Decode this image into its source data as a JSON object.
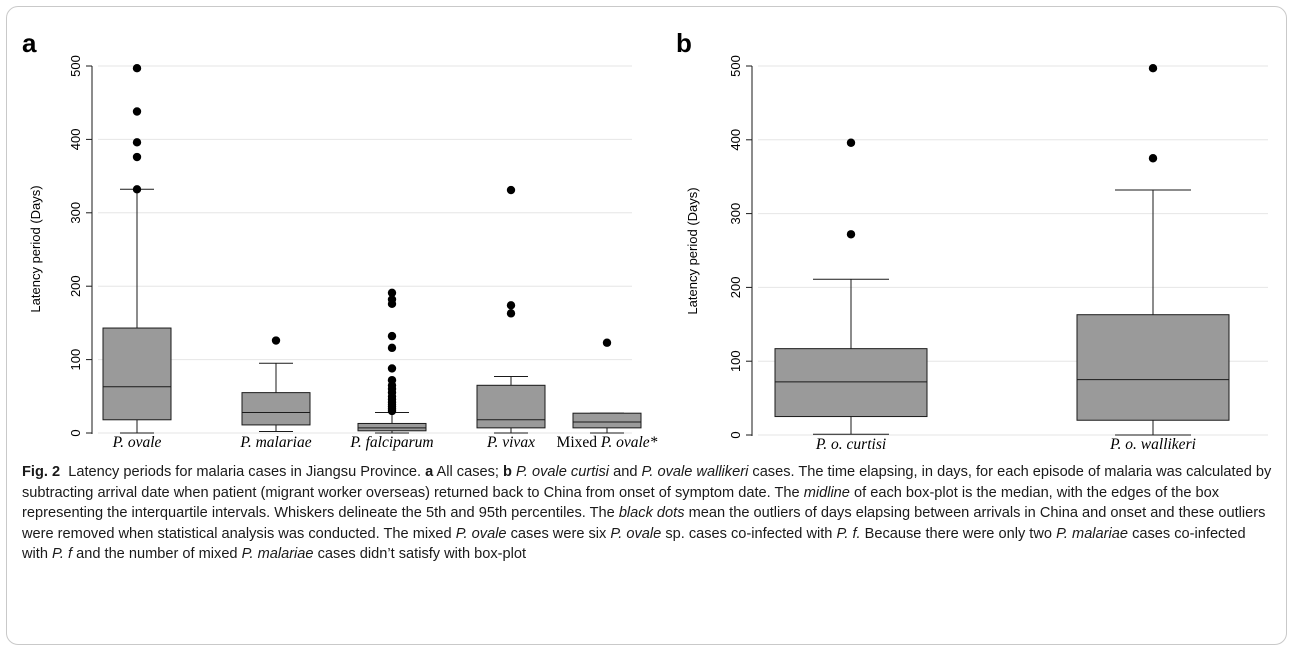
{
  "figure": {
    "colors": {
      "box_fill": "#9a9a9a",
      "stroke": "#1a1a1a",
      "grid": "#e6e6e6",
      "outlier": "#000000"
    }
  },
  "chart_data": [
    {
      "type": "box",
      "panel_label": "a",
      "ylabel": "Latency period (Days)",
      "ylim": [
        0,
        500
      ],
      "yticks": [
        0,
        100,
        200,
        300,
        400,
        500
      ],
      "grid": true,
      "categories": [
        "P. ovale",
        "P. malariae",
        "P. falciparum",
        "P. vivax",
        "Mixed P. ovale*"
      ],
      "boxes": [
        {
          "category": "P. ovale",
          "whisker_low": 0,
          "q1": 18,
          "median": 63,
          "q3": 143,
          "whisker_high": 332,
          "outliers": [
            332,
            376,
            396,
            438,
            497
          ]
        },
        {
          "category": "P. malariae",
          "whisker_low": 2,
          "q1": 11,
          "median": 28,
          "q3": 55,
          "whisker_high": 95,
          "outliers": [
            126
          ]
        },
        {
          "category": "P. falciparum",
          "whisker_low": 0,
          "q1": 3,
          "median": 7,
          "q3": 13,
          "whisker_high": 28,
          "outliers": [
            30,
            33,
            36,
            39,
            42,
            46,
            50,
            55,
            60,
            65,
            72,
            88,
            116,
            132,
            176,
            182,
            191
          ]
        },
        {
          "category": "P. vivax",
          "whisker_low": 0,
          "q1": 7,
          "median": 18,
          "q3": 65,
          "whisker_high": 77,
          "outliers": [
            163,
            174,
            331
          ]
        },
        {
          "category": "Mixed P. ovale*",
          "whisker_low": 0,
          "q1": 7,
          "median": 15,
          "q3": 27,
          "whisker_high": 27,
          "outliers": [
            123
          ]
        }
      ]
    },
    {
      "type": "box",
      "panel_label": "b",
      "ylabel": "Latency period (Days)",
      "ylim": [
        0,
        500
      ],
      "yticks": [
        0,
        100,
        200,
        300,
        400,
        500
      ],
      "grid": true,
      "categories": [
        "P. o. curtisi",
        "P. o. wallikeri"
      ],
      "boxes": [
        {
          "category": "P. o. curtisi",
          "whisker_low": 1,
          "q1": 25,
          "median": 72,
          "q3": 117,
          "whisker_high": 211,
          "outliers": [
            272,
            396
          ]
        },
        {
          "category": "P. o. wallikeri",
          "whisker_low": 0,
          "q1": 20,
          "median": 75,
          "q3": 163,
          "whisker_high": 332,
          "outliers": [
            375,
            497
          ]
        }
      ]
    }
  ],
  "caption": {
    "fig_label": "Fig. 2",
    "intro": "Latency periods for malaria cases in Jiangsu Province.",
    "a_label": "a",
    "a_text": "All cases;",
    "b_label": "b",
    "b_species_1": "P. ovale curtisi",
    "and_1": "and",
    "b_species_2": "P. ovale wallikeri",
    "b_text": "cases. The time elapsing, in days, for each episode of malaria was calculated by subtracting arrival date when patient (migrant worker overseas) returned back to China from onset of symptom date. The",
    "midline": "midline",
    "midline_text": "of each box-plot is the median, with the edges of the box representing the interquartile intervals. Whiskers delineate the 5th and 95th percentiles. The",
    "black_dots": "black dots",
    "dots_text": "mean the outliers of days elapsing between arrivals in China and onset and these outliers were removed when statistical analysis was conducted. The mixed",
    "p_ovale_1": "P. ovale",
    "mixed_text": "cases were six",
    "p_ovale_2": "P. ovale",
    "coinf_text": "sp. cases co-infected with",
    "pf_1": "P. f.",
    "because_text": "Because there were only two",
    "p_malariae_1": "P. malariae",
    "coinf_text_2": "cases co-infected with",
    "pf_2": "P. f",
    "number_text": "and the number of mixed",
    "p_malariae_2": "P. malariae",
    "end_text": "cases didn’t satisfy with box-plot"
  }
}
